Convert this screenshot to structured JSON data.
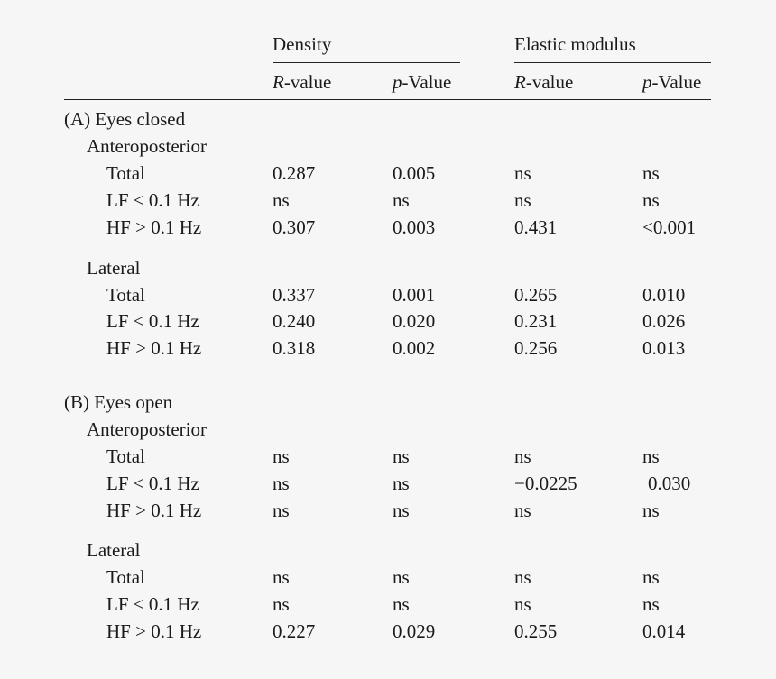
{
  "header": {
    "group1": "Density",
    "group2": "Elastic modulus",
    "col_r_italic": "R",
    "col_r_rest": "-value",
    "col_p_italic": "p",
    "col_p_rest": "-Value"
  },
  "sections": [
    {
      "title": "(A) Eyes closed",
      "subsections": [
        {
          "name": "Anteroposterior",
          "rows": [
            {
              "label": "Total",
              "values": [
                "0.287",
                "0.005",
                "ns",
                "ns"
              ]
            },
            {
              "label": "LF < 0.1 Hz",
              "values": [
                "ns",
                "ns",
                "ns",
                "ns"
              ]
            },
            {
              "label": "HF > 0.1 Hz",
              "values": [
                "0.307",
                "0.003",
                "0.431",
                "<0.001"
              ]
            }
          ]
        },
        {
          "name": "Lateral",
          "rows": [
            {
              "label": "Total",
              "values": [
                "0.337",
                "0.001",
                "0.265",
                "0.010"
              ]
            },
            {
              "label": "LF < 0.1 Hz",
              "values": [
                "0.240",
                "0.020",
                "0.231",
                "0.026"
              ]
            },
            {
              "label": "HF > 0.1 Hz",
              "values": [
                "0.318",
                "0.002",
                "0.256",
                "0.013"
              ]
            }
          ]
        }
      ]
    },
    {
      "title": "(B) Eyes open",
      "subsections": [
        {
          "name": "Anteroposterior",
          "rows": [
            {
              "label": "Total",
              "values": [
                "ns",
                "ns",
                "ns",
                "ns"
              ]
            },
            {
              "label": "LF < 0.1 Hz",
              "values": [
                "ns",
                "ns",
                "−0.0225",
                "0.030"
              ]
            },
            {
              "label": "HF > 0.1 Hz",
              "values": [
                "ns",
                "ns",
                "ns",
                "ns"
              ]
            }
          ]
        },
        {
          "name": "Lateral",
          "rows": [
            {
              "label": "Total",
              "values": [
                "ns",
                "ns",
                "ns",
                "ns"
              ]
            },
            {
              "label": "LF < 0.1 Hz",
              "values": [
                "ns",
                "ns",
                "ns",
                "ns"
              ]
            },
            {
              "label": "HF > 0.1 Hz",
              "values": [
                "0.227",
                "0.029",
                "0.255",
                "0.014"
              ]
            }
          ]
        }
      ]
    }
  ]
}
